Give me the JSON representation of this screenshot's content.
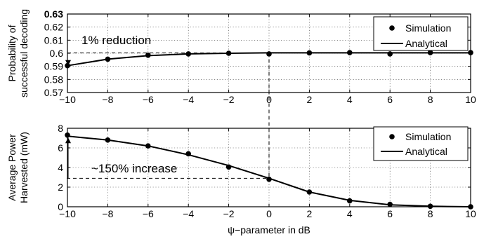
{
  "chart_data": [
    {
      "type": "line",
      "ylabel": [
        "Probability of",
        "successful decoding"
      ],
      "xlim": [
        -10,
        10
      ],
      "ylim": [
        0.57,
        0.63
      ],
      "xticks": [
        "−10",
        "−8",
        "−6",
        "−4",
        "−2",
        "0",
        "2",
        "4",
        "6",
        "8",
        "10"
      ],
      "yticks": [
        "0.57",
        "0.58",
        "0.59",
        "0.6",
        "0.61",
        "0.62",
        "0.63"
      ],
      "grid": true,
      "legend": {
        "placement": "top-right",
        "entries": [
          "Simulation",
          "Analytical"
        ]
      },
      "annotation": "1% reduction",
      "series": [
        {
          "name": "Simulation",
          "x": [
            -10,
            -8,
            -6,
            -4,
            -2,
            0,
            2,
            4,
            6,
            8,
            10
          ],
          "y": [
            0.5905,
            0.5955,
            0.5985,
            0.5995,
            0.6,
            0.5995,
            0.6003,
            0.6005,
            0.5995,
            0.6005,
            0.6005
          ]
        },
        {
          "name": "Analytical",
          "x": [
            -10,
            -8,
            -6,
            -4,
            -2,
            0,
            2,
            4,
            6,
            8,
            10
          ],
          "y": [
            0.5905,
            0.5955,
            0.5982,
            0.5995,
            0.6,
            0.6003,
            0.6003,
            0.6003,
            0.6003,
            0.6003,
            0.6003
          ]
        }
      ]
    },
    {
      "type": "line",
      "ylabel": [
        "Average Power",
        "Harvested (mW)"
      ],
      "xlabel": "ψ−parameter in dB",
      "xlim": [
        -10,
        10
      ],
      "ylim": [
        0,
        8
      ],
      "xticks": [
        "−10",
        "−8",
        "−6",
        "−4",
        "−2",
        "0",
        "2",
        "4",
        "6",
        "8",
        "10"
      ],
      "yticks": [
        "0",
        "2",
        "4",
        "6",
        "8"
      ],
      "grid": true,
      "legend": {
        "placement": "top-right",
        "entries": [
          "Simulation",
          "Analytical"
        ]
      },
      "annotation": "~150% increase",
      "series": [
        {
          "name": "Simulation",
          "x": [
            -10,
            -8,
            -6,
            -4,
            -2,
            0,
            2,
            4,
            6,
            8,
            10
          ],
          "y": [
            7.3,
            6.8,
            6.2,
            5.4,
            4.05,
            2.8,
            1.5,
            0.6,
            0.25,
            0.05,
            0.0
          ]
        },
        {
          "name": "Analytical",
          "x": [
            -10,
            -8,
            -6,
            -4,
            -2,
            0,
            2,
            4,
            6,
            8,
            10
          ],
          "y": [
            7.2,
            6.8,
            6.2,
            5.3,
            4.2,
            2.9,
            1.5,
            0.65,
            0.2,
            0.05,
            0.0
          ]
        }
      ]
    }
  ]
}
